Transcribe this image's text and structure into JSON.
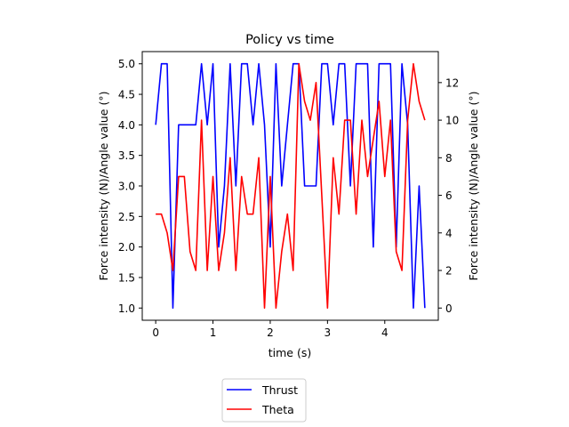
{
  "chart_data": {
    "type": "line",
    "title": "Policy vs time",
    "xlabel": "time (s)",
    "ylabel_left": "Force intensity (N)/Angle value (°)",
    "ylabel_right": "Force intensity (N)/Angle value (°)",
    "xlim": [
      -0.235,
      4.935
    ],
    "ylim_left": [
      0.8,
      5.2
    ],
    "ylim_right": [
      -0.65,
      13.65
    ],
    "x_ticks": [
      0,
      1,
      2,
      3,
      4
    ],
    "y_ticks_left": [
      1.0,
      1.5,
      2.0,
      2.5,
      3.0,
      3.5,
      4.0,
      4.5,
      5.0
    ],
    "y_ticks_right": [
      0,
      2,
      4,
      6,
      8,
      10,
      12
    ],
    "grid": false,
    "legend_placement": "below plot, center",
    "x": [
      0.0,
      0.1,
      0.2,
      0.3,
      0.4,
      0.5,
      0.6,
      0.7,
      0.8,
      0.9,
      1.0,
      1.1,
      1.2,
      1.3,
      1.4,
      1.5,
      1.6,
      1.7,
      1.8,
      1.9,
      2.0,
      2.1,
      2.2,
      2.3,
      2.4,
      2.5,
      2.6,
      2.7,
      2.8,
      2.9,
      3.0,
      3.1,
      3.2,
      3.3,
      3.4,
      3.5,
      3.6,
      3.7,
      3.8,
      3.9,
      4.0,
      4.1,
      4.2,
      4.3,
      4.4,
      4.5,
      4.6,
      4.7
    ],
    "series": [
      {
        "name": "Thrust",
        "axis": "left",
        "color": "#0000ff",
        "values": [
          4.0,
          5.0,
          5.0,
          1.0,
          4.0,
          4.0,
          4.0,
          4.0,
          5.0,
          4.0,
          5.0,
          2.0,
          3.0,
          5.0,
          3.0,
          5.0,
          5.0,
          4.0,
          5.0,
          4.0,
          2.0,
          5.0,
          3.0,
          4.0,
          5.0,
          5.0,
          3.0,
          3.0,
          3.0,
          5.0,
          5.0,
          4.0,
          5.0,
          5.0,
          3.0,
          5.0,
          5.0,
          5.0,
          2.0,
          5.0,
          5.0,
          5.0,
          2.0,
          5.0,
          4.0,
          1.0,
          3.0,
          1.0
        ]
      },
      {
        "name": "Theta",
        "axis": "right",
        "color": "#ff0000",
        "values": [
          5,
          5,
          4,
          2,
          7,
          7,
          3,
          2,
          10,
          2,
          7,
          2,
          4,
          8,
          2,
          7,
          5,
          5,
          8,
          0,
          7,
          0,
          3,
          5,
          2,
          13,
          11,
          10,
          12,
          6,
          0,
          8,
          5,
          10,
          10,
          5,
          10,
          7,
          9,
          11,
          7,
          10,
          3,
          2,
          10,
          13,
          11,
          10
        ]
      }
    ]
  }
}
